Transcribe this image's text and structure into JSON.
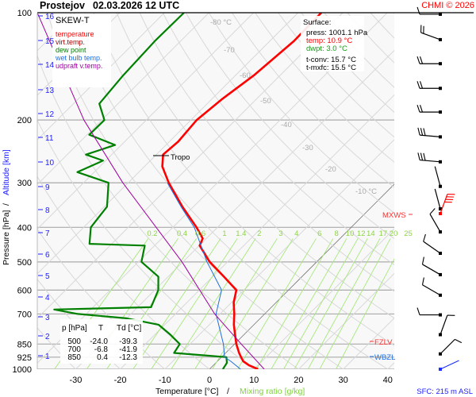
{
  "title": {
    "station": "Prostejov",
    "datetime": "02.03.2026 12 UTC"
  },
  "copyright": "CHMI © 2026",
  "legend": {
    "heading": "SKEW-T",
    "items": [
      {
        "label": "temperature",
        "color": "#ff0000"
      },
      {
        "label": "virt.temp.",
        "color": "#b00000"
      },
      {
        "label": "dew point",
        "color": "#008000"
      },
      {
        "label": "wet bulb temp.",
        "color": "#1e6fe0"
      },
      {
        "label": "udpraft v.temp.",
        "color": "#a000a0"
      }
    ]
  },
  "surface": {
    "heading": "Surface:",
    "press": "press: 1001.1 hPa",
    "temp": "temp: 10.9 °C",
    "dwpt": "dwpt: 3.0 °C",
    "tconv": "t-conv: 15.7 °C",
    "tmxfc": "t-mxfc: 15.5 °C"
  },
  "table": {
    "headers": [
      "p [hPa]",
      "T",
      "Td [°C]"
    ],
    "rows": [
      [
        "500",
        "-24.0",
        "-39.3"
      ],
      [
        "700",
        "-6.8",
        "-41.9"
      ],
      [
        "850",
        "0.4",
        "-12.3"
      ]
    ]
  },
  "levels": {
    "mxws": "MXWS",
    "fzlv": "FZLV",
    "wbzl": "WBZL"
  },
  "sfc_label": "SFC: 215 m ASL",
  "chart_data": {
    "type": "line",
    "title": "Prostejov 02.03.2026 12 UTC",
    "xlabel": "Temperature [°C]",
    "xlabel_sep": "/",
    "xlabel2": "Mixing ratio [g/kg]",
    "ylabel": "Pressure [hPa]",
    "ylabel_sep": "/",
    "ylabel2": "Altitude [km]",
    "xlim": [
      -35,
      45
    ],
    "ylim": [
      1000,
      100
    ],
    "x_ticks": [
      "-30",
      "-20",
      "-10",
      "0",
      "10",
      "20",
      "30",
      "40"
    ],
    "p_ticks": [
      "100",
      "200",
      "300",
      "400",
      "500",
      "600",
      "700",
      "850",
      "925",
      "1000"
    ],
    "altitude_ticks": [
      "1",
      "2",
      "3",
      "4",
      "5",
      "6",
      "7",
      "8",
      "9",
      "10",
      "11",
      "12",
      "13",
      "14",
      "15",
      "16"
    ],
    "isotherm_labels": [
      "-80 °C",
      "-70",
      "-60",
      "-50",
      "-40",
      "-30",
      "-20",
      "-10 °C"
    ],
    "mixing_ratio_labels": [
      "0.2",
      "0.4",
      "0.6",
      "1",
      "1.4",
      "2",
      "3",
      "4",
      "6",
      "8",
      "10",
      "12",
      "14",
      "17",
      "20",
      "25"
    ],
    "tropopause": {
      "label": "Tropo",
      "p": 250
    },
    "series": [
      {
        "name": "temperature",
        "color": "#ff0000",
        "p": [
          1000,
          975,
          950,
          925,
          900,
          850,
          800,
          750,
          700,
          650,
          600,
          550,
          500,
          450,
          430,
          400,
          350,
          300,
          270,
          250,
          230,
          200,
          175,
          150,
          120,
          100
        ],
        "t": [
          10.9,
          8.0,
          5.8,
          4.4,
          3.0,
          0.4,
          -2.0,
          -4.5,
          -6.8,
          -9.5,
          -11.7,
          -17.5,
          -24.0,
          -29.9,
          -30.8,
          -34.7,
          -42.5,
          -50.9,
          -56.0,
          -58.5,
          -58.0,
          -58.7,
          -57.7,
          -55.9,
          -54.6,
          -54.8
        ]
      },
      {
        "name": "dew point",
        "color": "#008000",
        "p": [
          1000,
          960,
          925,
          900,
          850,
          800,
          750,
          720,
          700,
          680,
          670,
          600,
          550,
          500,
          450,
          445,
          400,
          350,
          300,
          280,
          260,
          250,
          235,
          220,
          200,
          180,
          150,
          120,
          100
        ],
        "t": [
          3.0,
          2.5,
          1.1,
          -11.6,
          -12.3,
          -16.5,
          -21.4,
          -30.0,
          -41.9,
          -48.2,
          -27.0,
          -29.2,
          -32.2,
          -39.3,
          -42.2,
          -55.0,
          -58.4,
          -59.4,
          -64.4,
          -73.8,
          -70.6,
          -75.8,
          -71.4,
          -79.5,
          -79.4,
          -84.2,
          -85.2,
          -85.8,
          -85.6
        ]
      },
      {
        "name": "wet bulb temp.",
        "color": "#1e6fe0",
        "p": [
          1000,
          950,
          925,
          850,
          700,
          600,
          500,
          400,
          350,
          300
        ],
        "t": [
          7.0,
          3.0,
          0.7,
          -2.5,
          -10.9,
          -15.0,
          -24.6,
          -35.2,
          -42.8,
          -51.2
        ]
      },
      {
        "name": "udpraft v.temp.",
        "color": "#a000a0",
        "p": [
          1000,
          850,
          700,
          500,
          300,
          200,
          100
        ],
        "t": [
          12.3,
          1.5,
          -11.2,
          -30.2,
          -61.2,
          -84.0,
          -118.5
        ]
      }
    ],
    "wind": [
      {
        "p": 101,
        "dir": 270,
        "kt": 10
      },
      {
        "p": 119,
        "dir": 290,
        "kt": 20
      },
      {
        "p": 139,
        "dir": 270,
        "kt": 20
      },
      {
        "p": 163,
        "dir": 270,
        "kt": 20
      },
      {
        "p": 190,
        "dir": 270,
        "kt": 20
      },
      {
        "p": 223,
        "dir": 275,
        "kt": 30
      },
      {
        "p": 262,
        "dir": 275,
        "kt": 30
      },
      {
        "p": 307,
        "dir": 345,
        "kt": 5
      },
      {
        "p": 355,
        "dir": 345,
        "kt": 5
      },
      {
        "p": 366,
        "dir": 20,
        "kt": 40,
        "max": true
      },
      {
        "p": 412,
        "dir": 330,
        "kt": 10
      },
      {
        "p": 473,
        "dir": 305,
        "kt": 10
      },
      {
        "p": 543,
        "dir": 300,
        "kt": 10
      },
      {
        "p": 620,
        "dir": 300,
        "kt": 10
      },
      {
        "p": 704,
        "dir": 270,
        "kt": 10
      },
      {
        "p": 800,
        "dir": 20,
        "kt": 10
      },
      {
        "p": 906,
        "dir": 45,
        "kt": 10
      },
      {
        "p": 1000,
        "dir": 65,
        "kt": 5,
        "surface": true
      }
    ]
  }
}
